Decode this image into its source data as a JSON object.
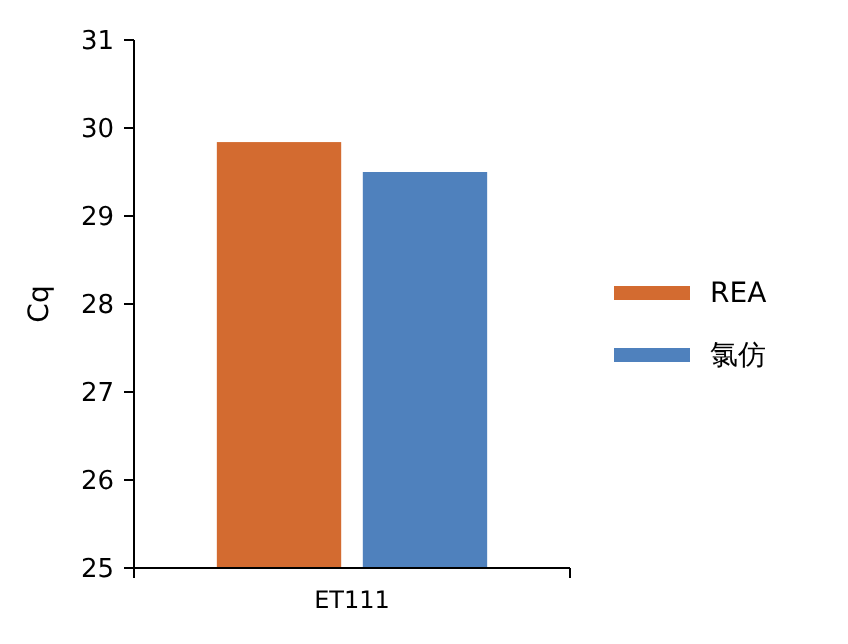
{
  "chart_data": {
    "type": "bar",
    "ylabel": "Cq",
    "categories": [
      "ET111"
    ],
    "series": [
      {
        "name": "REA",
        "color": "#d36b30",
        "values": [
          29.84
        ]
      },
      {
        "name": "氯仿",
        "color": "#4f81bd",
        "values": [
          29.5
        ]
      }
    ],
    "ylim": [
      25,
      31
    ],
    "yticks": [
      25,
      26,
      27,
      28,
      29,
      30,
      31
    ],
    "grid": false,
    "legend": "right"
  }
}
